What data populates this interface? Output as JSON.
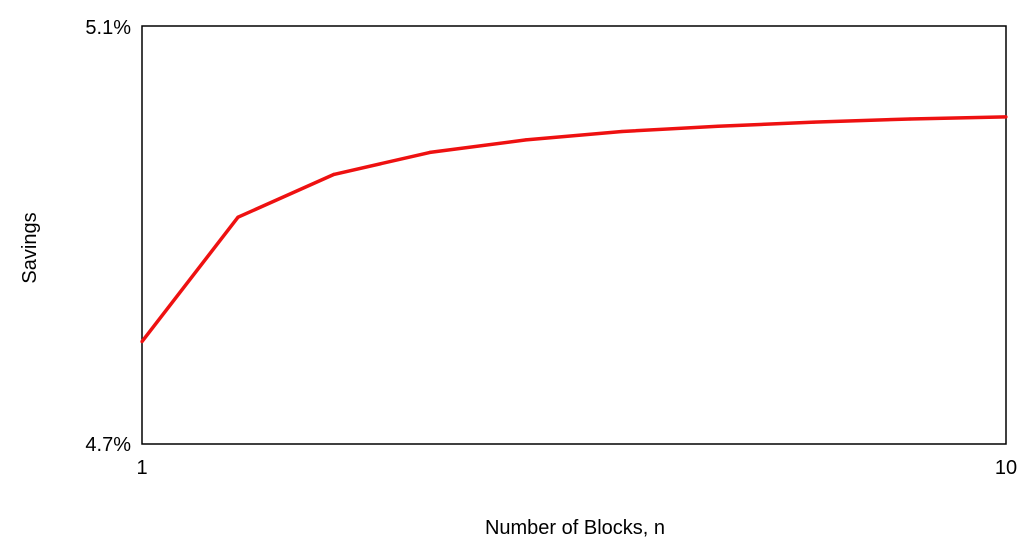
{
  "chart_data": {
    "type": "line",
    "title": "",
    "xlabel": "Number of Blocks, n",
    "ylabel": "Savings",
    "x": [
      1,
      2,
      3,
      4,
      5,
      6,
      7,
      8,
      9,
      10
    ],
    "series": [
      {
        "values": [
          4.798,
          4.917,
          4.958,
          4.979,
          4.991,
          4.999,
          5.004,
          5.008,
          5.011,
          5.013
        ],
        "color": "#ee1111"
      }
    ],
    "xlim": [
      1,
      10
    ],
    "ylim": [
      4.7,
      5.1
    ],
    "x_tick_labels": [
      "1",
      "10"
    ],
    "y_tick_labels": [
      "4.7%",
      "5.1%"
    ],
    "grid": false,
    "legend": "none"
  }
}
